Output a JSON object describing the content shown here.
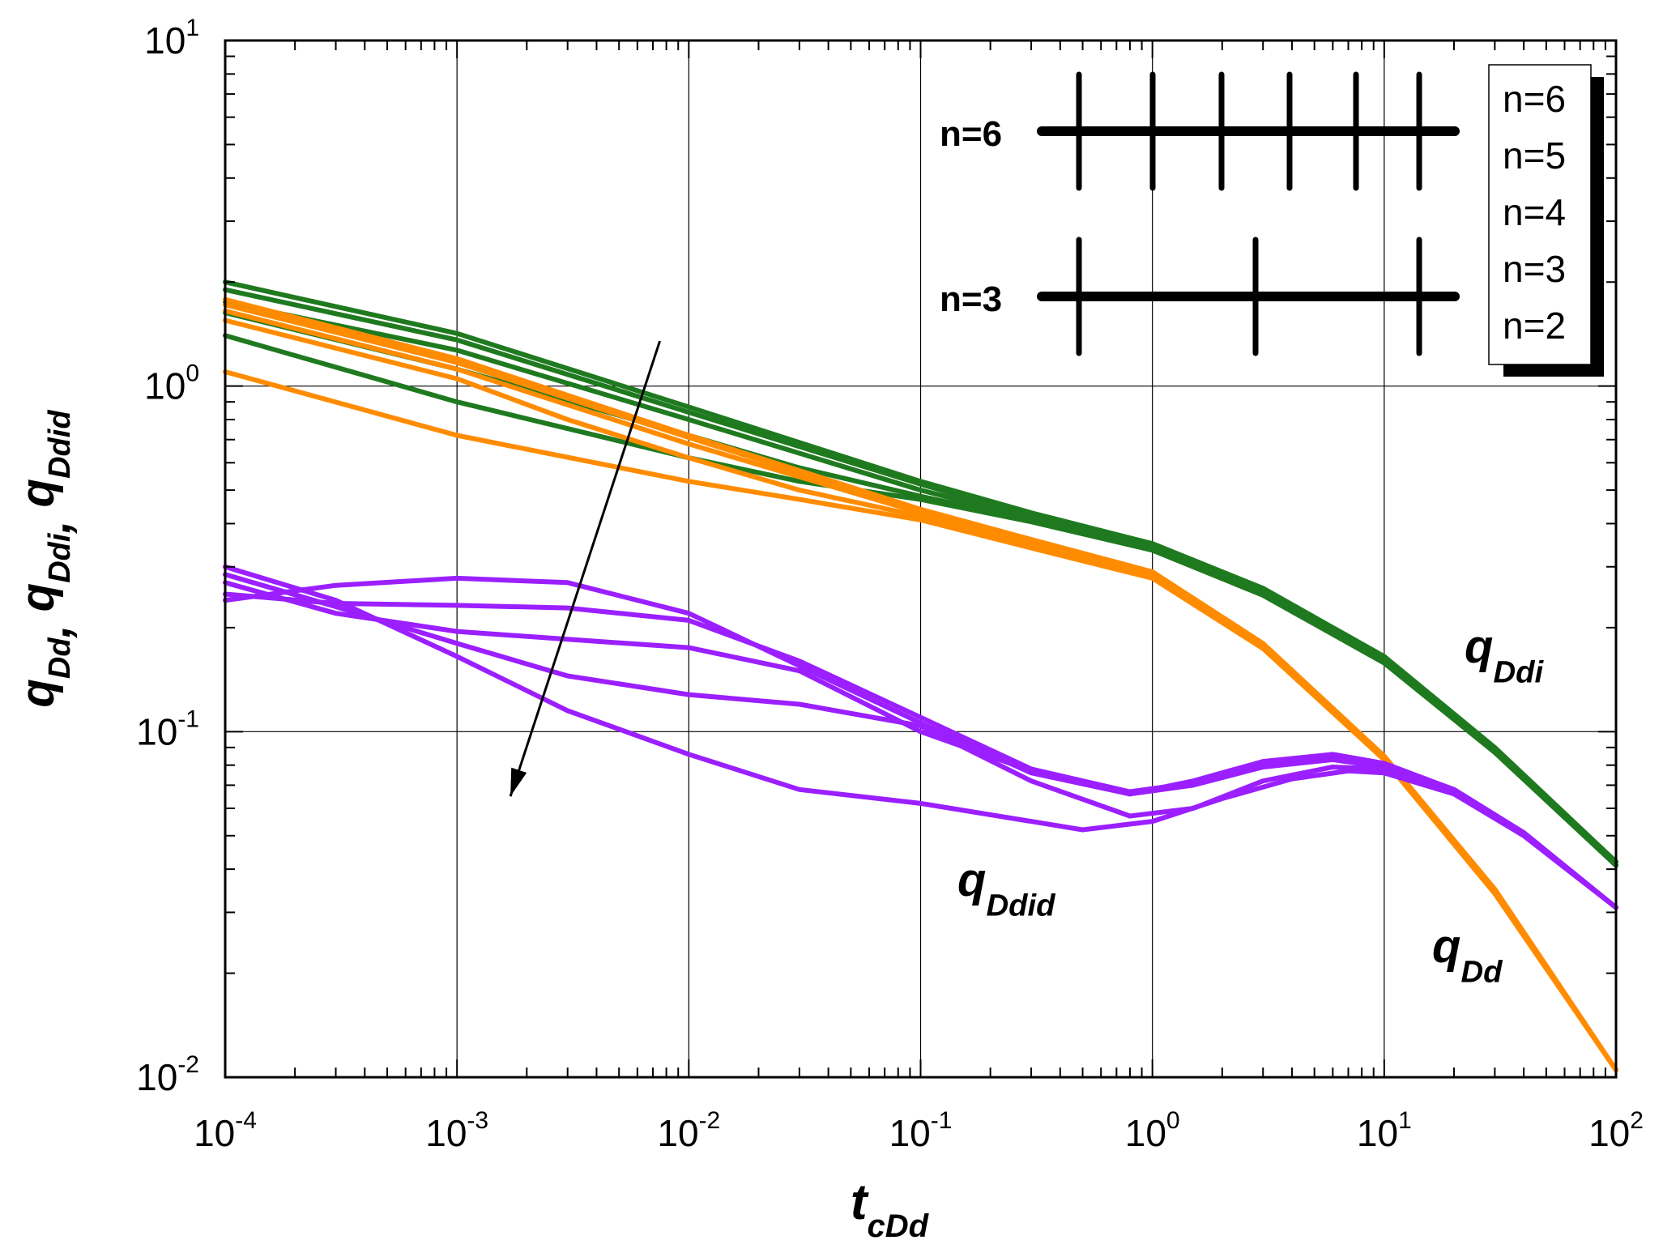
{
  "chart_data": {
    "type": "line",
    "xscale": "log",
    "yscale": "log",
    "xlim": [
      0.0001,
      100
    ],
    "ylim": [
      0.01,
      10
    ],
    "grid": true,
    "x_ticks": [
      {
        "base": "10",
        "exp": "-4"
      },
      {
        "base": "10",
        "exp": "-3"
      },
      {
        "base": "10",
        "exp": "-2"
      },
      {
        "base": "10",
        "exp": "-1"
      },
      {
        "base": "10",
        "exp": "0"
      },
      {
        "base": "10",
        "exp": "1"
      },
      {
        "base": "10",
        "exp": "2"
      }
    ],
    "y_ticks": [
      {
        "base": "10",
        "exp": "-2"
      },
      {
        "base": "10",
        "exp": "-1"
      },
      {
        "base": "10",
        "exp": "0"
      },
      {
        "base": "10",
        "exp": "1"
      }
    ],
    "xlabel": {
      "main": "t",
      "sub": "cDd"
    },
    "ylabel": [
      {
        "main": "q",
        "sub": "Dd"
      },
      {
        "sep": ", "
      },
      {
        "main": "q",
        "sub": "Ddi"
      },
      {
        "sep": ", "
      },
      {
        "main": "q",
        "sub": "Ddid"
      }
    ],
    "annotations": {
      "qDdi": {
        "main": "q",
        "sub": "Ddi"
      },
      "qDd": {
        "main": "q",
        "sub": "Dd"
      },
      "qDdid": {
        "main": "q",
        "sub": "Ddid"
      }
    },
    "arrow": {
      "from": [
        0.0075,
        1.35
      ],
      "to": [
        0.0017,
        0.065
      ]
    },
    "legend": {
      "placement": "top-right",
      "entries": [
        "n=6",
        "n=5",
        "n=4",
        "n=3",
        "n=2"
      ]
    },
    "schematic": [
      {
        "label": "n=6",
        "fractures": 6
      },
      {
        "label": "n=3",
        "fractures": 3
      }
    ],
    "series": [
      {
        "name": "qDdi n=6",
        "group": "qDdi",
        "color": "#1f7a1f",
        "points": [
          [
            0.0001,
            2.0
          ],
          [
            0.001,
            1.42
          ],
          [
            0.01,
            0.87
          ],
          [
            0.1,
            0.53
          ],
          [
            0.3,
            0.43
          ],
          [
            1,
            0.35
          ],
          [
            3,
            0.26
          ],
          [
            10,
            0.165
          ],
          [
            30,
            0.09
          ],
          [
            100,
            0.042
          ]
        ]
      },
      {
        "name": "qDdi n=5",
        "group": "qDdi",
        "color": "#1f7a1f",
        "points": [
          [
            0.0001,
            1.9
          ],
          [
            0.001,
            1.36
          ],
          [
            0.01,
            0.84
          ],
          [
            0.1,
            0.52
          ],
          [
            0.3,
            0.42
          ],
          [
            1,
            0.345
          ],
          [
            3,
            0.255
          ],
          [
            10,
            0.163
          ],
          [
            30,
            0.089
          ],
          [
            100,
            0.042
          ]
        ]
      },
      {
        "name": "qDdi n=4",
        "group": "qDdi",
        "color": "#1f7a1f",
        "points": [
          [
            0.0001,
            1.75
          ],
          [
            0.001,
            1.27
          ],
          [
            0.01,
            0.8
          ],
          [
            0.1,
            0.5
          ],
          [
            0.3,
            0.415
          ],
          [
            1,
            0.34
          ],
          [
            3,
            0.252
          ],
          [
            10,
            0.161
          ],
          [
            30,
            0.088
          ],
          [
            100,
            0.042
          ]
        ]
      },
      {
        "name": "qDdi n=3",
        "group": "qDdi",
        "color": "#1f7a1f",
        "points": [
          [
            0.0001,
            1.63
          ],
          [
            0.001,
            1.12
          ],
          [
            0.01,
            0.72
          ],
          [
            0.03,
            0.58
          ],
          [
            0.1,
            0.48
          ],
          [
            0.3,
            0.41
          ],
          [
            1,
            0.338
          ],
          [
            3,
            0.25
          ],
          [
            10,
            0.16
          ],
          [
            30,
            0.088
          ],
          [
            100,
            0.041
          ]
        ]
      },
      {
        "name": "qDdi n=2",
        "group": "qDdi",
        "color": "#1f7a1f",
        "points": [
          [
            0.0001,
            1.4
          ],
          [
            0.001,
            0.9
          ],
          [
            0.01,
            0.62
          ],
          [
            0.03,
            0.53
          ],
          [
            0.1,
            0.47
          ],
          [
            0.3,
            0.405
          ],
          [
            1,
            0.335
          ],
          [
            3,
            0.248
          ],
          [
            10,
            0.158
          ],
          [
            30,
            0.087
          ],
          [
            100,
            0.041
          ]
        ]
      },
      {
        "name": "qDd n=6",
        "group": "qDd",
        "color": "#ff8c00",
        "points": [
          [
            0.0001,
            1.78
          ],
          [
            0.001,
            1.2
          ],
          [
            0.01,
            0.72
          ],
          [
            0.1,
            0.44
          ],
          [
            0.3,
            0.36
          ],
          [
            1,
            0.29
          ],
          [
            3,
            0.18
          ],
          [
            10,
            0.085
          ],
          [
            30,
            0.035
          ],
          [
            100,
            0.0105
          ]
        ]
      },
      {
        "name": "qDd n=5",
        "group": "qDd",
        "color": "#ff8c00",
        "points": [
          [
            0.0001,
            1.72
          ],
          [
            0.001,
            1.17
          ],
          [
            0.01,
            0.71
          ],
          [
            0.1,
            0.435
          ],
          [
            0.3,
            0.355
          ],
          [
            1,
            0.287
          ],
          [
            3,
            0.178
          ],
          [
            10,
            0.084
          ],
          [
            30,
            0.035
          ],
          [
            100,
            0.0105
          ]
        ]
      },
      {
        "name": "qDd n=4",
        "group": "qDd",
        "color": "#ff8c00",
        "points": [
          [
            0.0001,
            1.65
          ],
          [
            0.001,
            1.12
          ],
          [
            0.01,
            0.68
          ],
          [
            0.1,
            0.43
          ],
          [
            0.3,
            0.35
          ],
          [
            1,
            0.284
          ],
          [
            3,
            0.176
          ],
          [
            10,
            0.084
          ],
          [
            30,
            0.034
          ],
          [
            100,
            0.0105
          ]
        ]
      },
      {
        "name": "qDd n=3",
        "group": "qDd",
        "color": "#ff8c00",
        "points": [
          [
            0.0001,
            1.55
          ],
          [
            0.001,
            1.05
          ],
          [
            0.003,
            0.8
          ],
          [
            0.01,
            0.62
          ],
          [
            0.03,
            0.5
          ],
          [
            0.1,
            0.42
          ],
          [
            0.3,
            0.345
          ],
          [
            1,
            0.28
          ],
          [
            3,
            0.175
          ],
          [
            10,
            0.083
          ],
          [
            30,
            0.034
          ],
          [
            100,
            0.0105
          ]
        ]
      },
      {
        "name": "qDd n=2",
        "group": "qDd",
        "color": "#ff8c00",
        "points": [
          [
            0.0001,
            1.1
          ],
          [
            0.001,
            0.72
          ],
          [
            0.01,
            0.53
          ],
          [
            0.03,
            0.47
          ],
          [
            0.1,
            0.41
          ],
          [
            0.3,
            0.34
          ],
          [
            1,
            0.278
          ],
          [
            3,
            0.174
          ],
          [
            10,
            0.083
          ],
          [
            30,
            0.034
          ],
          [
            100,
            0.0105
          ]
        ]
      },
      {
        "name": "qDdid n=6",
        "group": "qDdid",
        "color": "#9b1fff",
        "points": [
          [
            0.0001,
            0.3
          ],
          [
            0.0003,
            0.24
          ],
          [
            0.001,
            0.165
          ],
          [
            0.003,
            0.115
          ],
          [
            0.01,
            0.086
          ],
          [
            0.03,
            0.068
          ],
          [
            0.1,
            0.062
          ],
          [
            0.3,
            0.055
          ],
          [
            0.5,
            0.052
          ],
          [
            1,
            0.055
          ],
          [
            2,
            0.064
          ],
          [
            4,
            0.073
          ],
          [
            7,
            0.077
          ],
          [
            10,
            0.076
          ],
          [
            20,
            0.066
          ],
          [
            40,
            0.05
          ],
          [
            100,
            0.031
          ]
        ]
      },
      {
        "name": "qDdid n=5",
        "group": "qDdid",
        "color": "#9b1fff",
        "points": [
          [
            0.0001,
            0.285
          ],
          [
            0.0003,
            0.23
          ],
          [
            0.001,
            0.18
          ],
          [
            0.003,
            0.145
          ],
          [
            0.01,
            0.128
          ],
          [
            0.03,
            0.12
          ],
          [
            0.1,
            0.104
          ],
          [
            0.3,
            0.072
          ],
          [
            0.8,
            0.057
          ],
          [
            1.5,
            0.06
          ],
          [
            3,
            0.072
          ],
          [
            6,
            0.079
          ],
          [
            10,
            0.078
          ],
          [
            20,
            0.067
          ],
          [
            40,
            0.05
          ],
          [
            100,
            0.031
          ]
        ]
      },
      {
        "name": "qDdid n=4",
        "group": "qDdid",
        "color": "#9b1fff",
        "points": [
          [
            0.0001,
            0.27
          ],
          [
            0.0003,
            0.22
          ],
          [
            0.001,
            0.195
          ],
          [
            0.003,
            0.185
          ],
          [
            0.01,
            0.175
          ],
          [
            0.03,
            0.15
          ],
          [
            0.1,
            0.1
          ],
          [
            0.3,
            0.077
          ],
          [
            0.8,
            0.066
          ],
          [
            1.5,
            0.07
          ],
          [
            3,
            0.079
          ],
          [
            6,
            0.083
          ],
          [
            10,
            0.079
          ],
          [
            20,
            0.068
          ],
          [
            40,
            0.051
          ],
          [
            100,
            0.031
          ]
        ]
      },
      {
        "name": "qDdid n=3",
        "group": "qDdid",
        "color": "#9b1fff",
        "points": [
          [
            0.0001,
            0.25
          ],
          [
            0.0003,
            0.235
          ],
          [
            0.001,
            0.232
          ],
          [
            0.003,
            0.228
          ],
          [
            0.01,
            0.21
          ],
          [
            0.03,
            0.16
          ],
          [
            0.1,
            0.11
          ],
          [
            0.3,
            0.078
          ],
          [
            0.8,
            0.067
          ],
          [
            1.5,
            0.071
          ],
          [
            3,
            0.081
          ],
          [
            6,
            0.085
          ],
          [
            10,
            0.08
          ],
          [
            20,
            0.068
          ],
          [
            40,
            0.051
          ],
          [
            100,
            0.031
          ]
        ]
      },
      {
        "name": "qDdid n=2",
        "group": "qDdid",
        "color": "#9b1fff",
        "points": [
          [
            0.0001,
            0.24
          ],
          [
            0.0003,
            0.265
          ],
          [
            0.001,
            0.278
          ],
          [
            0.003,
            0.27
          ],
          [
            0.01,
            0.22
          ],
          [
            0.03,
            0.155
          ],
          [
            0.1,
            0.106
          ],
          [
            0.3,
            0.076
          ],
          [
            0.8,
            0.066
          ],
          [
            1.5,
            0.072
          ],
          [
            3,
            0.082
          ],
          [
            6,
            0.086
          ],
          [
            10,
            0.081
          ],
          [
            20,
            0.068
          ],
          [
            40,
            0.051
          ],
          [
            100,
            0.031
          ]
        ]
      }
    ]
  }
}
